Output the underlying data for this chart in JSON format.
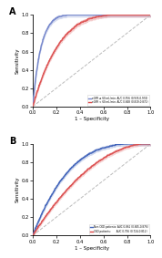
{
  "panel_A": {
    "title": "A",
    "legend": [
      {
        "label": "eGFR ≥ 60 mL/min: AUC 0.956 (0.935-0.974)",
        "color": "#7788cc"
      },
      {
        "label": "eGFR < 60 mL/min: AUC 0.848 (0.819-0.872)",
        "color": "#dd4444"
      }
    ],
    "xlabel": "1 – Specificity",
    "ylabel": "Sensitivity",
    "xticks": [
      0.0,
      0.2,
      0.4,
      0.6,
      0.8,
      1.0
    ],
    "yticks": [
      0.0,
      0.2,
      0.4,
      0.6,
      0.8,
      1.0
    ],
    "xlim": [
      0.0,
      1.0
    ],
    "ylim": [
      0.0,
      1.0
    ]
  },
  "panel_B": {
    "title": "B",
    "legend": [
      {
        "label": "Non-CKD patients: AUC 0.861 (0.845-0.876)",
        "color": "#4466bb"
      },
      {
        "label": "CKD patients:       AUC 0.756 (0.724-0.812)",
        "color": "#dd4444"
      }
    ],
    "xlabel": "1 – Specificity",
    "ylabel": "Sensitivity",
    "xticks": [
      0.0,
      0.2,
      0.4,
      0.6,
      0.8,
      1.0
    ],
    "yticks": [
      0.0,
      0.2,
      0.4,
      0.6,
      0.8,
      1.0
    ],
    "xlim": [
      0.0,
      1.0
    ],
    "ylim": [
      0.0,
      1.0
    ]
  },
  "colors": {
    "panel_A_blue": "#7788cc",
    "panel_A_red": "#dd5555",
    "panel_B_blue": "#4466bb",
    "panel_B_red": "#dd5555",
    "diagonal": "#bbbbbb",
    "ci_alpha_A": 0.3,
    "ci_alpha_B": 0.25
  },
  "figsize": [
    1.78,
    2.83
  ],
  "dpi": 100
}
